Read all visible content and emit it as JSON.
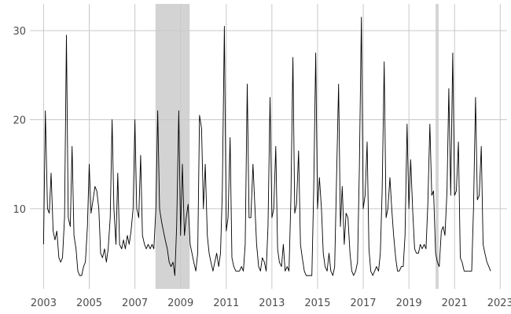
{
  "chart_data": {
    "type": "line",
    "title": "",
    "xlabel": "",
    "ylabel": "",
    "xlim": [
      2002.4,
      2023.3
    ],
    "ylim": [
      1.0,
      33.0
    ],
    "grid": true,
    "legend": "none",
    "x_ticks": [
      2003,
      2005,
      2007,
      2009,
      2011,
      2013,
      2015,
      2017,
      2019,
      2021,
      2023
    ],
    "x_tick_labels": [
      "2003",
      "2005",
      "2007",
      "2009",
      "2011",
      "2013",
      "2015",
      "2017",
      "2019",
      "2021",
      "2023"
    ],
    "y_ticks": [
      10,
      20,
      30
    ],
    "y_tick_labels": [
      "10",
      "20",
      "30"
    ],
    "shaded_periods": [
      [
        2007.9,
        2009.4
      ],
      [
        2020.17,
        2020.3
      ]
    ],
    "colors": {
      "line": "#000000",
      "grid": "#c8c8c8",
      "shade": "#d3d3d3",
      "tick_text": "#4d4d4d",
      "background": "#ffffff"
    },
    "series": [
      {
        "x": [
          2003.0,
          2003.08,
          2003.17,
          2003.25,
          2003.33,
          2003.42,
          2003.5,
          2003.58,
          2003.67,
          2003.75,
          2003.83,
          2003.92,
          2004.0,
          2004.08,
          2004.17,
          2004.25,
          2004.33,
          2004.42,
          2004.5,
          2004.58,
          2004.67,
          2004.75,
          2004.83,
          2004.92,
          2005.0,
          2005.08,
          2005.17,
          2005.25,
          2005.33,
          2005.42,
          2005.5,
          2005.58,
          2005.67,
          2005.75,
          2005.83,
          2005.92,
          2006.0,
          2006.08,
          2006.17,
          2006.25,
          2006.33,
          2006.42,
          2006.5,
          2006.58,
          2006.67,
          2006.75,
          2006.83,
          2006.92,
          2007.0,
          2007.08,
          2007.17,
          2007.25,
          2007.33,
          2007.42,
          2007.5,
          2007.58,
          2007.67,
          2007.75,
          2007.83,
          2007.92,
          2008.0,
          2008.08,
          2008.17,
          2008.25,
          2008.33,
          2008.42,
          2008.5,
          2008.58,
          2008.67,
          2008.75,
          2008.83,
          2008.92,
          2009.0,
          2009.08,
          2009.17,
          2009.25,
          2009.33,
          2009.42,
          2009.5,
          2009.58,
          2009.67,
          2009.75,
          2009.83,
          2009.92,
          2010.0,
          2010.08,
          2010.17,
          2010.25,
          2010.33,
          2010.42,
          2010.5,
          2010.58,
          2010.67,
          2010.75,
          2010.83,
          2010.92,
          2011.0,
          2011.08,
          2011.17,
          2011.25,
          2011.33,
          2011.42,
          2011.5,
          2011.58,
          2011.67,
          2011.75,
          2011.83,
          2011.92,
          2012.0,
          2012.08,
          2012.17,
          2012.25,
          2012.33,
          2012.42,
          2012.5,
          2012.58,
          2012.67,
          2012.75,
          2012.83,
          2012.92,
          2013.0,
          2013.08,
          2013.17,
          2013.25,
          2013.33,
          2013.42,
          2013.5,
          2013.58,
          2013.67,
          2013.75,
          2013.83,
          2013.92,
          2014.0,
          2014.08,
          2014.17,
          2014.25,
          2014.33,
          2014.42,
          2014.5,
          2014.58,
          2014.67,
          2014.75,
          2014.83,
          2014.92,
          2015.0,
          2015.08,
          2015.17,
          2015.25,
          2015.33,
          2015.42,
          2015.5,
          2015.58,
          2015.67,
          2015.75,
          2015.83,
          2015.92,
          2016.0,
          2016.08,
          2016.17,
          2016.25,
          2016.33,
          2016.42,
          2016.5,
          2016.58,
          2016.67,
          2016.75,
          2016.83,
          2016.92,
          2017.0,
          2017.08,
          2017.17,
          2017.25,
          2017.33,
          2017.42,
          2017.5,
          2017.58,
          2017.67,
          2017.75,
          2017.83,
          2017.92,
          2018.0,
          2018.08,
          2018.17,
          2018.25,
          2018.33,
          2018.42,
          2018.5,
          2018.58,
          2018.67,
          2018.75,
          2018.83,
          2018.92,
          2019.0,
          2019.08,
          2019.17,
          2019.25,
          2019.33,
          2019.42,
          2019.5,
          2019.58,
          2019.67,
          2019.75,
          2019.83,
          2019.92,
          2020.0,
          2020.08,
          2020.17,
          2020.25,
          2020.33,
          2020.42,
          2020.5,
          2020.58,
          2020.67,
          2020.75,
          2020.83,
          2020.92,
          2021.0,
          2021.08,
          2021.17,
          2021.25,
          2021.33,
          2021.42,
          2021.5,
          2021.58,
          2021.67,
          2021.75,
          2021.83,
          2021.92,
          2022.0,
          2022.08,
          2022.17,
          2022.25,
          2022.33,
          2022.42,
          2022.5,
          2022.58
        ],
        "values": [
          6.0,
          21.0,
          10.0,
          9.5,
          14.0,
          7.5,
          6.5,
          7.5,
          4.5,
          4.0,
          4.5,
          9.0,
          29.5,
          9.0,
          8.0,
          17.0,
          7.0,
          5.5,
          3.0,
          2.5,
          2.5,
          3.5,
          4.0,
          8.0,
          15.0,
          9.5,
          11.0,
          12.5,
          12.0,
          10.0,
          5.0,
          4.5,
          5.5,
          4.0,
          5.5,
          9.0,
          20.0,
          10.0,
          6.0,
          14.0,
          6.0,
          5.5,
          6.5,
          5.5,
          7.0,
          6.0,
          7.5,
          10.0,
          20.0,
          10.0,
          9.0,
          16.0,
          7.0,
          6.0,
          5.5,
          6.0,
          5.5,
          6.0,
          5.5,
          10.0,
          21.0,
          10.0,
          8.5,
          7.5,
          6.5,
          5.5,
          4.0,
          3.5,
          4.0,
          2.5,
          8.0,
          21.0,
          7.0,
          15.0,
          7.0,
          9.0,
          10.5,
          6.0,
          5.0,
          4.0,
          3.0,
          5.0,
          20.5,
          19.0,
          10.0,
          15.0,
          7.0,
          5.0,
          4.0,
          3.0,
          4.0,
          5.0,
          3.5,
          5.0,
          12.0,
          30.5,
          7.5,
          9.0,
          18.0,
          4.5,
          3.5,
          3.0,
          3.0,
          3.0,
          3.5,
          3.0,
          6.0,
          24.0,
          9.0,
          9.0,
          15.0,
          10.5,
          6.0,
          3.5,
          3.0,
          4.5,
          4.0,
          3.0,
          8.0,
          22.5,
          9.0,
          10.0,
          17.0,
          5.5,
          4.0,
          3.5,
          6.0,
          3.0,
          3.5,
          3.0,
          11.0,
          27.0,
          9.5,
          10.5,
          16.5,
          6.0,
          4.5,
          3.0,
          2.5,
          2.5,
          2.5,
          2.5,
          12.0,
          27.5,
          10.0,
          13.5,
          10.0,
          5.0,
          3.5,
          3.0,
          5.0,
          3.0,
          2.5,
          3.5,
          13.0,
          24.0,
          8.0,
          12.5,
          6.0,
          9.5,
          9.0,
          5.0,
          3.0,
          2.5,
          3.0,
          4.0,
          14.5,
          31.5,
          10.0,
          11.5,
          17.5,
          5.5,
          3.0,
          2.5,
          3.0,
          3.5,
          3.0,
          5.0,
          12.0,
          26.5,
          9.0,
          10.0,
          13.5,
          10.0,
          7.0,
          4.5,
          3.0,
          3.0,
          3.5,
          3.5,
          7.0,
          19.5,
          10.0,
          15.5,
          9.5,
          5.5,
          5.0,
          5.0,
          6.0,
          5.5,
          6.0,
          5.5,
          10.5,
          19.5,
          11.5,
          12.0,
          5.0,
          4.0,
          3.5,
          7.5,
          8.0,
          7.0,
          12.0,
          23.5,
          11.5,
          27.5,
          11.5,
          12.0,
          17.5,
          4.5,
          4.0,
          3.0,
          3.0,
          3.0,
          3.0,
          3.0,
          10.0,
          22.5,
          11.0,
          11.5,
          17.0,
          6.0,
          5.0,
          4.0,
          3.5,
          3.0
        ]
      }
    ]
  }
}
